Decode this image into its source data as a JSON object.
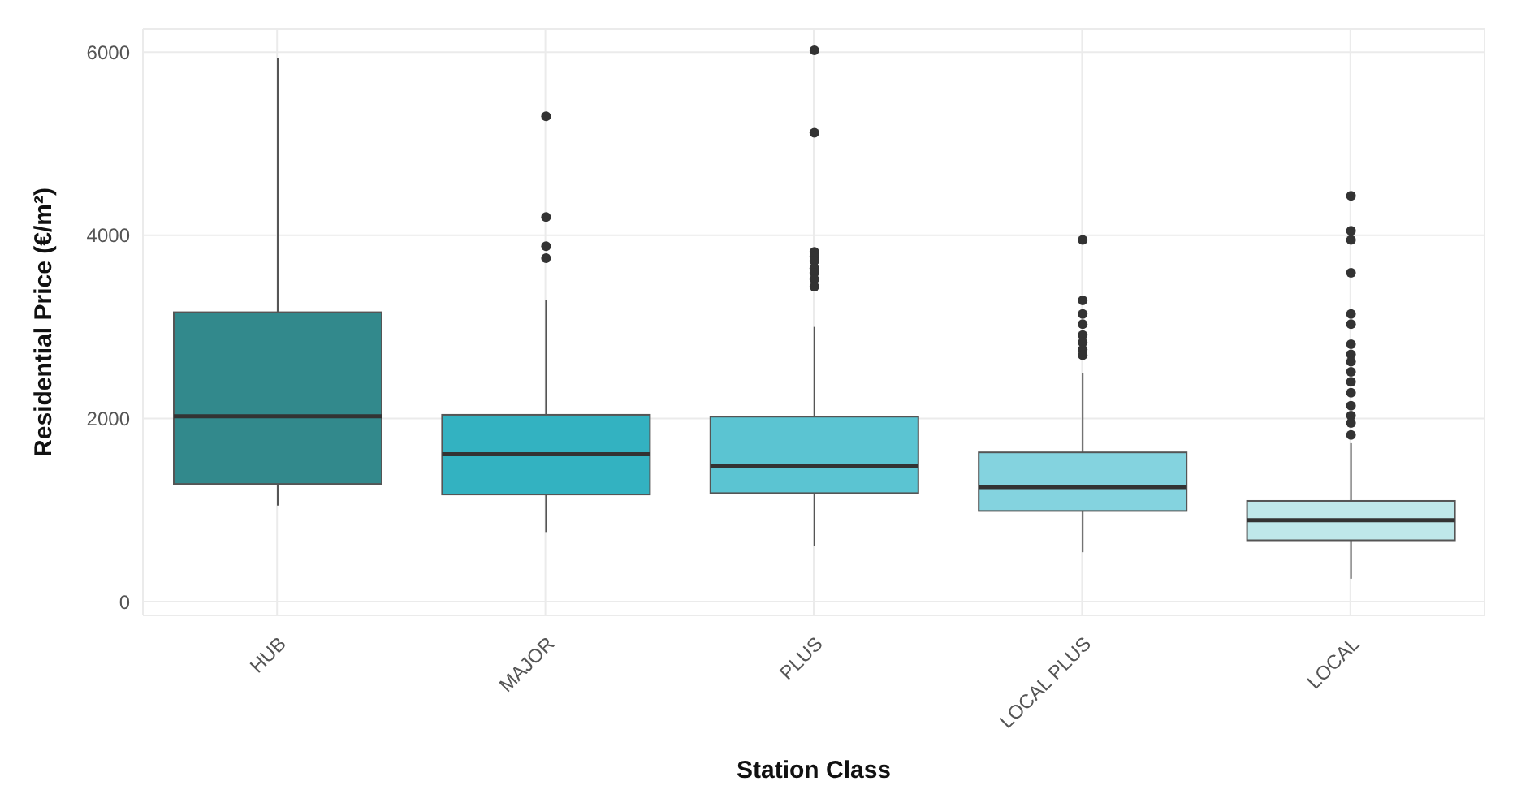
{
  "chart_data": {
    "type": "box",
    "xlabel": "Station Class",
    "ylabel": "Residential Price (€/m²)",
    "categories": [
      "HUB",
      "MAJOR",
      "PLUS",
      "LOCAL PLUS",
      "LOCAL"
    ],
    "colors": [
      "#32898c",
      "#33b2c1",
      "#5bc4d2",
      "#84d3df",
      "#bfe8ea"
    ],
    "boxes": [
      {
        "low": 1050,
        "q1": 1285,
        "median": 2025,
        "q3": 3160,
        "high": 5940
      },
      {
        "low": 760,
        "q1": 1170,
        "median": 1610,
        "q3": 2040,
        "high": 3290,
        "outliers": [
          5300,
          4200,
          3880,
          3750
        ]
      },
      {
        "low": 610,
        "q1": 1185,
        "median": 1480,
        "q3": 2020,
        "high": 3000,
        "outliers": [
          6020,
          5120,
          3820,
          3770,
          3720,
          3640,
          3590,
          3520,
          3440
        ]
      },
      {
        "low": 540,
        "q1": 990,
        "median": 1250,
        "q3": 1630,
        "high": 2500,
        "outliers": [
          3950,
          3290,
          3140,
          3030,
          2910,
          2830,
          2750,
          2690
        ]
      },
      {
        "low": 250,
        "q1": 670,
        "median": 890,
        "q3": 1100,
        "high": 1730,
        "outliers": [
          4430,
          4050,
          3950,
          3590,
          3140,
          3030,
          2810,
          2700,
          2620,
          2510,
          2400,
          2280,
          2140,
          2030,
          1950,
          1820
        ]
      }
    ],
    "ylim": [
      -150,
      6250
    ],
    "yticks": [
      0,
      2000,
      4000,
      6000
    ],
    "grid": true,
    "legend": false
  }
}
